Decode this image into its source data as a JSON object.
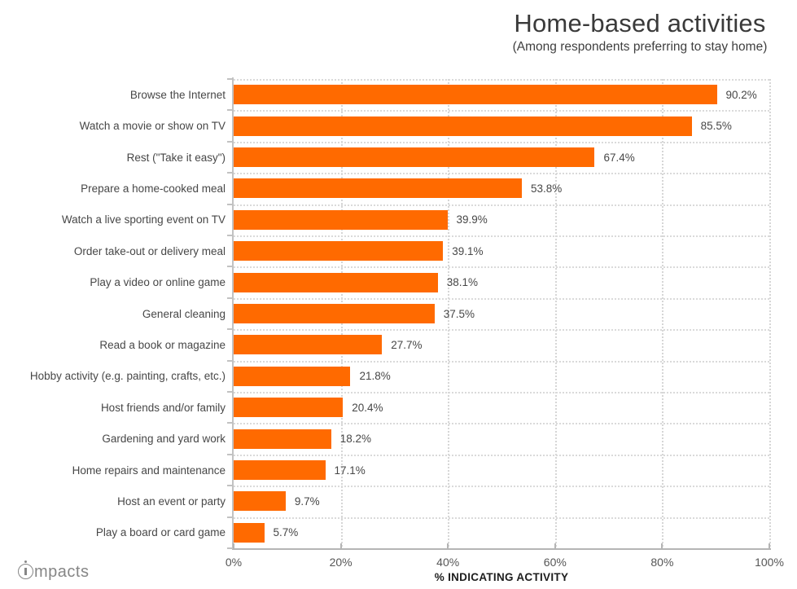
{
  "header": {
    "title": "Home-based activities",
    "subtitle": "(Among respondents preferring to stay home)"
  },
  "chart_data": {
    "type": "bar",
    "orientation": "horizontal",
    "title": "Home-based activities",
    "subtitle": "(Among respondents preferring to stay home)",
    "xlabel": "% INDICATING ACTIVITY",
    "ylabel": "",
    "xlim": [
      0,
      100
    ],
    "x_tick_labels": [
      "0%",
      "20%",
      "40%",
      "60%",
      "80%",
      "100%"
    ],
    "grid": "dotted",
    "legend": "none",
    "bar_color": "#FF6A00",
    "categories": [
      "Browse the Internet",
      "Watch a movie or show on TV",
      "Rest (\"Take it easy\")",
      "Prepare a home-cooked meal",
      "Watch a live sporting event on TV",
      "Order take-out or delivery meal",
      "Play a video or online game",
      "General cleaning",
      "Read a book or magazine",
      "Hobby activity (e.g. painting, crafts, etc.)",
      "Host friends and/or family",
      "Gardening and yard work",
      "Home repairs and maintenance",
      "Host an event or party",
      "Play a board or card game"
    ],
    "values": [
      90.2,
      85.5,
      67.4,
      53.8,
      39.9,
      39.1,
      38.1,
      37.5,
      27.7,
      21.8,
      20.4,
      18.2,
      17.1,
      9.7,
      5.7
    ],
    "value_labels": [
      "90.2%",
      "85.5%",
      "67.4%",
      "53.8%",
      "39.9%",
      "39.1%",
      "38.1%",
      "37.5%",
      "27.7%",
      "21.8%",
      "20.4%",
      "18.2%",
      "17.1%",
      "9.7%",
      "5.7%"
    ]
  },
  "footer": {
    "logo_initial": "i",
    "logo_rest": "mpacts"
  },
  "colors": {
    "bar": "#FF6A00",
    "axis": "#BDBDBD",
    "grid": "#D8D8D8",
    "text": "#474747",
    "title": "#3A3A3A"
  }
}
